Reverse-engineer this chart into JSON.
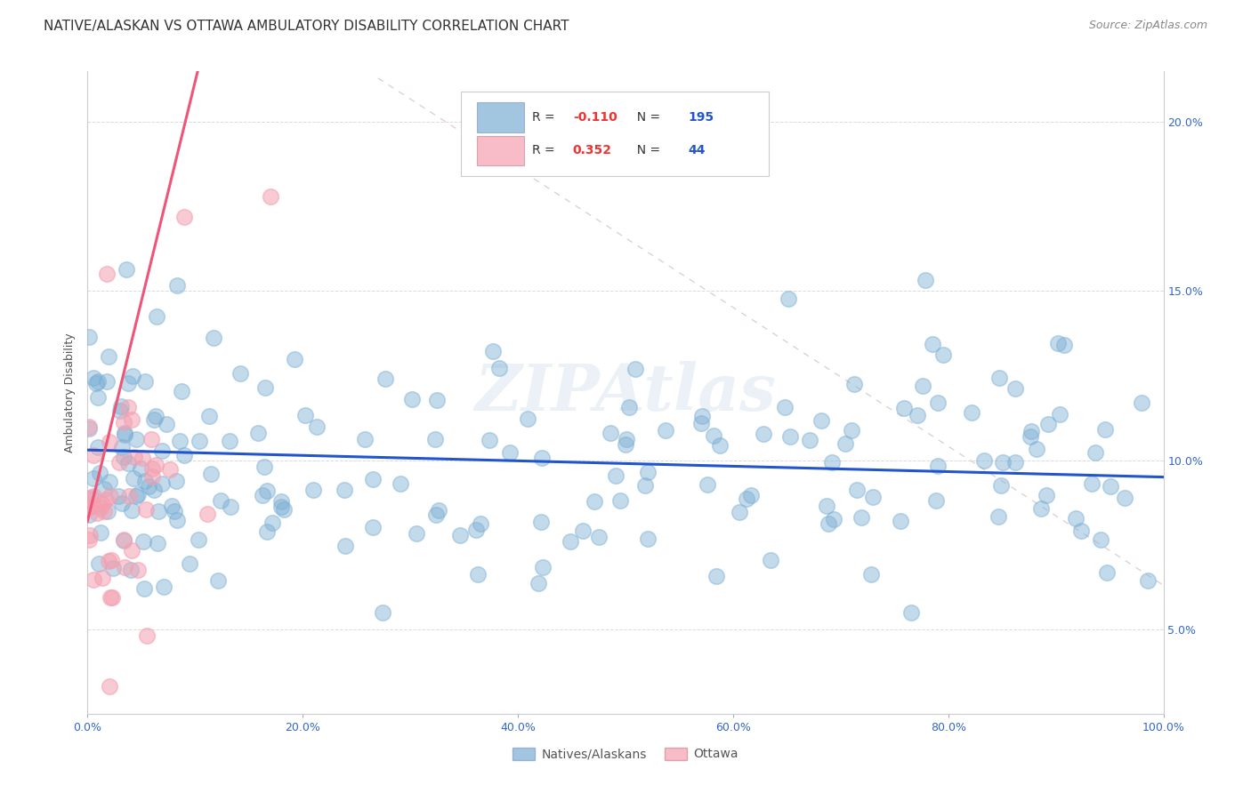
{
  "title": "NATIVE/ALASKAN VS OTTAWA AMBULATORY DISABILITY CORRELATION CHART",
  "source": "Source: ZipAtlas.com",
  "ylabel": "Ambulatory Disability",
  "xlabel_ticks": [
    "0.0%",
    "20.0%",
    "40.0%",
    "60.0%",
    "80.0%",
    "100.0%"
  ],
  "ylabel_ticks": [
    "5.0%",
    "10.0%",
    "15.0%",
    "20.0%"
  ],
  "xlim": [
    0.0,
    1.0
  ],
  "ylim": [
    0.025,
    0.215
  ],
  "blue_R": "-0.110",
  "blue_N": "195",
  "pink_R": "0.352",
  "pink_N": "44",
  "blue_color": "#7BAFD4",
  "pink_color": "#F4A0B0",
  "blue_line_color": "#2255CC",
  "pink_line_color": "#EE5577",
  "diagonal_color": "#DDBBBB",
  "watermark": "ZIPAtlas",
  "legend_label_blue": "Natives/Alaskans",
  "legend_label_pink": "Ottawa",
  "title_fontsize": 11,
  "source_fontsize": 9,
  "axis_label_fontsize": 9,
  "tick_fontsize": 9,
  "legend_R_color": "#EE3333",
  "legend_N_color": "#2255CC"
}
